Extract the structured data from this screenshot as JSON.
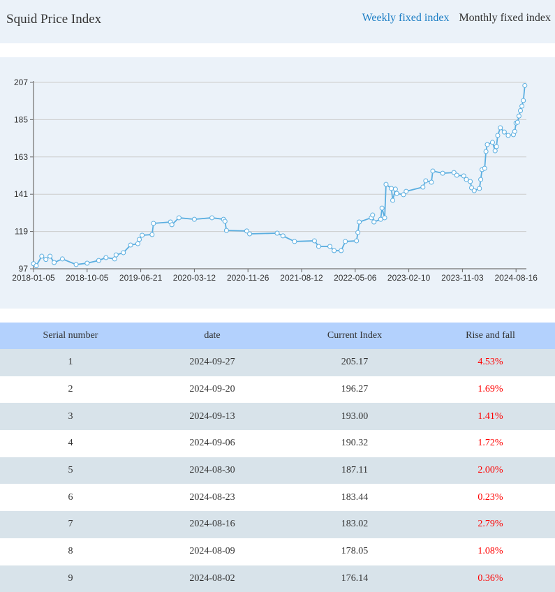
{
  "header": {
    "title": "Squid Price Index",
    "tabs": [
      {
        "label": "Weekly fixed index",
        "active": true
      },
      {
        "label": "Monthly fixed index",
        "active": false
      }
    ]
  },
  "colors": {
    "line": "#5aaee0",
    "accent": "#1a7dc4",
    "table_header": "#b3d1fd",
    "row_alt": "#d8e3ea",
    "change": "#ff0000"
  },
  "chart_data": {
    "type": "line",
    "title": "",
    "xlabel": "",
    "ylabel": "",
    "ylim": [
      97,
      207
    ],
    "yticks": [
      "97",
      "119",
      "141",
      "163",
      "185",
      "207"
    ],
    "xticks": [
      "2018-01-05",
      "2018-10-05",
      "2019-06-21",
      "2020-03-12",
      "2020-11-26",
      "2021-08-12",
      "2022-05-06",
      "2023-02-10",
      "2023-11-03",
      "2024-08-16"
    ],
    "grid": true,
    "markers": "hollow-circle",
    "x": [
      "2018-01-05",
      "2018-01-19",
      "2018-02-16",
      "2018-03-09",
      "2018-03-30",
      "2018-04-20",
      "2018-06-01",
      "2018-08-10",
      "2018-10-05",
      "2018-11-30",
      "2019-01-04",
      "2019-02-15",
      "2019-02-22",
      "2019-03-29",
      "2019-05-03",
      "2019-06-07",
      "2019-06-14",
      "2019-06-28",
      "2019-08-16",
      "2019-08-23",
      "2019-11-15",
      "2019-11-22",
      "2019-12-27",
      "2020-03-12",
      "2020-06-05",
      "2020-07-31",
      "2020-08-07",
      "2020-08-14",
      "2020-11-20",
      "2020-12-04",
      "2021-04-16",
      "2021-05-14",
      "2021-07-09",
      "2021-10-15",
      "2021-11-05",
      "2021-12-31",
      "2022-01-21",
      "2022-02-25",
      "2022-03-18",
      "2022-05-13",
      "2022-05-20",
      "2022-05-27",
      "2022-07-29",
      "2022-08-05",
      "2022-08-12",
      "2022-09-16",
      "2022-09-23",
      "2022-10-07",
      "2022-10-14",
      "2022-11-11",
      "2022-11-18",
      "2022-12-02",
      "2022-12-09",
      "2023-01-13",
      "2023-01-27",
      "2023-04-21",
      "2023-05-05",
      "2023-06-02",
      "2023-06-09",
      "2023-07-28",
      "2023-09-22",
      "2023-10-06",
      "2023-11-10",
      "2023-11-24",
      "2023-12-15",
      "2023-12-22",
      "2024-01-05",
      "2024-02-02",
      "2024-02-09",
      "2024-02-16",
      "2024-03-01",
      "2024-03-08",
      "2024-03-15",
      "2024-04-12",
      "2024-04-26",
      "2024-05-03",
      "2024-05-10",
      "2024-05-24",
      "2024-06-14",
      "2024-07-05",
      "2024-08-02",
      "2024-08-09",
      "2024-08-16",
      "2024-08-23",
      "2024-08-30",
      "2024-09-06",
      "2024-09-13",
      "2024-09-20",
      "2024-09-27"
    ],
    "values": [
      100.0,
      98.8,
      104.4,
      102.5,
      104.4,
      100.7,
      102.8,
      99.5,
      100.3,
      101.9,
      103.6,
      102.8,
      105.2,
      106.5,
      111.0,
      111.8,
      114.3,
      116.8,
      117.2,
      123.8,
      124.6,
      123.0,
      127.1,
      126.2,
      127.1,
      126.2,
      125.0,
      119.6,
      119.3,
      117.6,
      118.0,
      116.4,
      113.1,
      113.5,
      110.2,
      110.2,
      107.7,
      107.7,
      113.1,
      113.5,
      118.4,
      124.6,
      127.1,
      128.7,
      124.6,
      126.2,
      132.8,
      127.1,
      146.8,
      144.4,
      137.4,
      144.0,
      141.5,
      140.7,
      142.7,
      145.2,
      148.9,
      148.1,
      154.7,
      153.4,
      153.8,
      152.2,
      151.8,
      149.7,
      148.5,
      144.8,
      143.1,
      144.4,
      149.7,
      155.5,
      156.3,
      166.2,
      170.3,
      171.6,
      166.6,
      169.1,
      175.7,
      180.2,
      177.7,
      175.7,
      176.14,
      178.05,
      183.02,
      183.44,
      187.11,
      190.32,
      193.0,
      196.27,
      205.17
    ]
  },
  "table": {
    "columns": [
      "Serial number",
      "date",
      "Current Index",
      "Rise and fall"
    ],
    "rows": [
      [
        "1",
        "2024-09-27",
        "205.17",
        "4.53%"
      ],
      [
        "2",
        "2024-09-20",
        "196.27",
        "1.69%"
      ],
      [
        "3",
        "2024-09-13",
        "193.00",
        "1.41%"
      ],
      [
        "4",
        "2024-09-06",
        "190.32",
        "1.72%"
      ],
      [
        "5",
        "2024-08-30",
        "187.11",
        "2.00%"
      ],
      [
        "6",
        "2024-08-23",
        "183.44",
        "0.23%"
      ],
      [
        "7",
        "2024-08-16",
        "183.02",
        "2.79%"
      ],
      [
        "8",
        "2024-08-09",
        "178.05",
        "1.08%"
      ],
      [
        "9",
        "2024-08-02",
        "176.14",
        "0.36%"
      ]
    ]
  }
}
